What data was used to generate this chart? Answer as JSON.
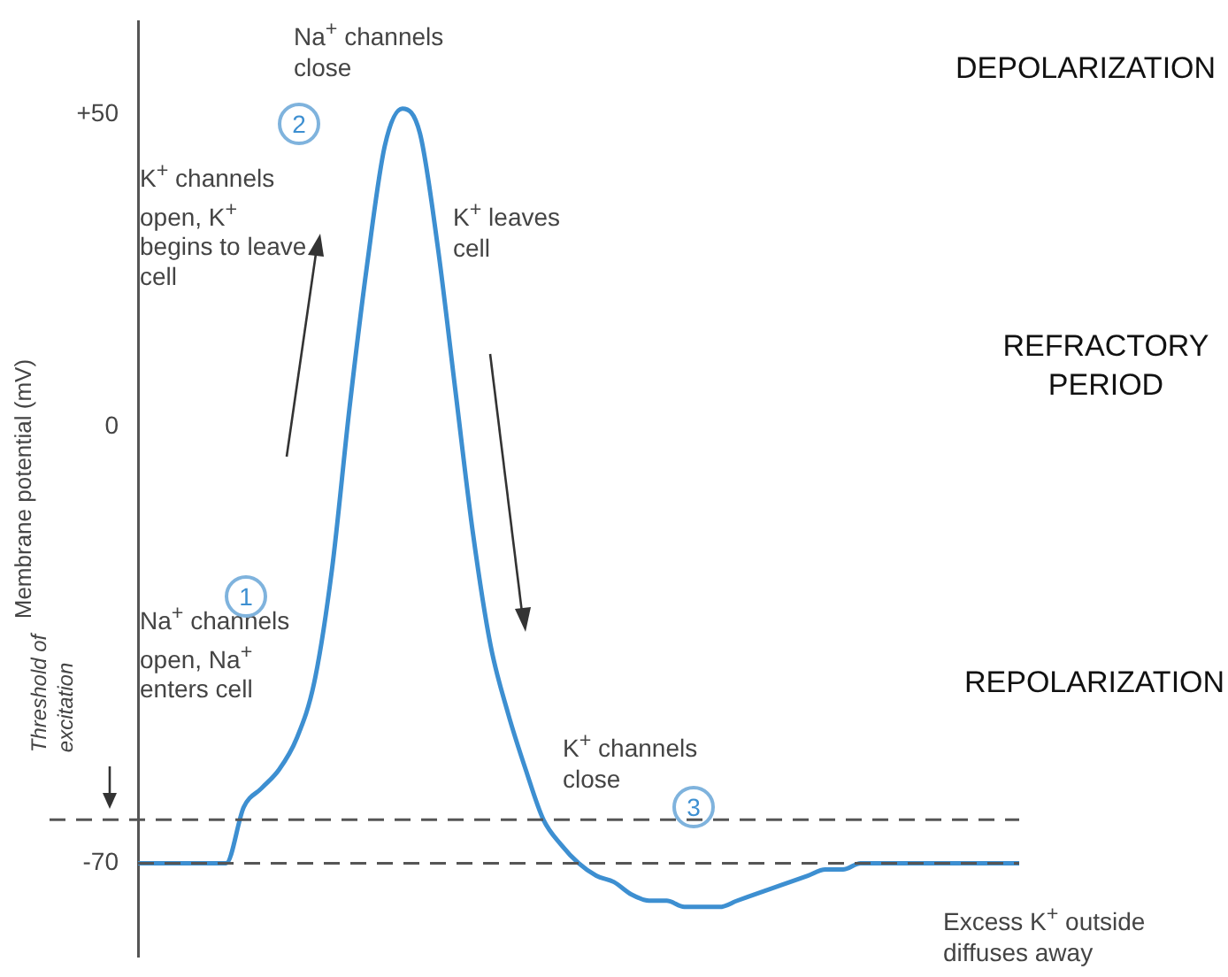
{
  "chart_data": {
    "type": "line",
    "ylabel": "Membrane potential (mV)",
    "categories": [
      null,
      null,
      null,
      null,
      null,
      null,
      null,
      null,
      null,
      null,
      null,
      null,
      null,
      null,
      null,
      null,
      null,
      null,
      null,
      null,
      null,
      null,
      null,
      null,
      null,
      null,
      null,
      null,
      null,
      null,
      null,
      null,
      null,
      null,
      null,
      null,
      null,
      null,
      null,
      null,
      null,
      null,
      null,
      null,
      null,
      null,
      null,
      null,
      null,
      null,
      null
    ],
    "series": [
      {
        "color": "#3d8fd1",
        "values": [
          -70,
          -70,
          -70,
          -70,
          -70,
          -70,
          -61,
          -58,
          -55,
          -50,
          -41,
          -23,
          3,
          26,
          45,
          51,
          47,
          29,
          6,
          -17,
          -35,
          -46,
          -55,
          -63,
          -67,
          -70,
          -72,
          -73,
          -75,
          -76,
          -76,
          -77,
          -77,
          -77,
          -76,
          -75,
          -74,
          -73,
          -72,
          -71,
          -71,
          -70,
          -70,
          -70,
          -70,
          -70,
          -70,
          -70,
          -70,
          -70,
          -70
        ]
      }
    ],
    "ylim": [
      -85,
      65
    ],
    "yticks": [
      {
        "value": 50,
        "label": "+50"
      },
      0,
      -70
    ],
    "tick_labels": "y",
    "marker": "none",
    "line_style": "solid",
    "ref_lines": [
      {
        "axis": "y",
        "value": -63,
        "label": "Threshold of excitation",
        "color": "#555555",
        "line_style": "dashed"
      },
      {
        "axis": "y",
        "value": -70,
        "color": "#555555",
        "line_style": "dashed"
      }
    ],
    "annotations": [
      "Na$^{+}$ channels close",
      "K$^{+}$ channels open, K$^{+}$ begins to leave cell",
      "K$^{+}$ leaves cell",
      "Na$^{+}$ channels open, Na$^{+}$ enters cell",
      "K$^{+}$ channels close",
      "Excess K$^{+}$ outside diffuses away",
      "DEPOLARIZATION",
      "REFRACTORY PERIOD",
      "REPOLARIZATION",
      "1",
      "2",
      "3"
    ]
  }
}
